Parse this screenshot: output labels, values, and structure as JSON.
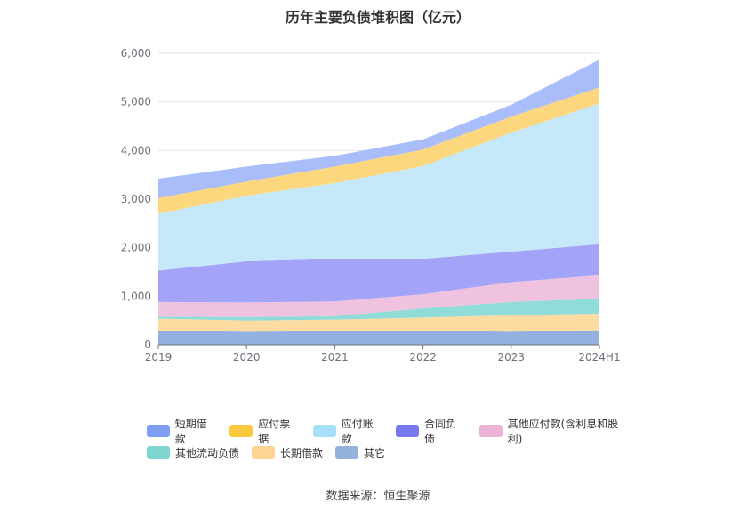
{
  "title": "历年主要负债堆积图（亿元）",
  "source": "数据来源：恒生聚源",
  "chart_data": {
    "type": "area",
    "stacked": true,
    "categories": [
      "2019",
      "2020",
      "2021",
      "2022",
      "2023",
      "2024H1"
    ],
    "ylim": [
      0,
      6000
    ],
    "yticks": [
      "0",
      "1,000",
      "2,000",
      "3,000",
      "4,000",
      "5,000",
      "6,000"
    ],
    "ytick_values": [
      0,
      1000,
      2000,
      3000,
      4000,
      5000,
      6000
    ],
    "grid": true,
    "legend_position": "bottom",
    "series": [
      {
        "name": "其它",
        "color": "#94b0de",
        "values": [
          290,
          270,
          280,
          290,
          270,
          300
        ]
      },
      {
        "name": "长期借款",
        "color": "#fddca2",
        "values": [
          250,
          230,
          240,
          270,
          340,
          340
        ]
      },
      {
        "name": "其他流动负债",
        "color": "#8fdcd8",
        "values": [
          40,
          70,
          70,
          190,
          270,
          310
        ]
      },
      {
        "name": "其他应付款(含利息和股利)",
        "color": "#efc3df",
        "values": [
          300,
          300,
          300,
          290,
          410,
          480
        ]
      },
      {
        "name": "合同负债",
        "color": "#a3a3f8",
        "values": [
          650,
          850,
          880,
          730,
          630,
          640
        ]
      },
      {
        "name": "应付账款",
        "color": "#c5e9fb",
        "values": [
          1170,
          1350,
          1560,
          1910,
          2450,
          2900
        ]
      },
      {
        "name": "应付票据",
        "color": "#fdd77d",
        "values": [
          320,
          290,
          340,
          340,
          330,
          330
        ]
      },
      {
        "name": "短期借款",
        "color": "#a9bdfa",
        "values": [
          400,
          310,
          220,
          210,
          240,
          570
        ]
      }
    ],
    "legend_rows": [
      [
        {
          "name": "短期借款",
          "color": "#7f9ff5"
        },
        {
          "name": "应付票据",
          "color": "#fcc83e"
        },
        {
          "name": "应付账款",
          "color": "#a6e0f8"
        },
        {
          "name": "合同负债",
          "color": "#7777f0"
        },
        {
          "name": "其他应付款(含利息和股利)",
          "color": "#ebb4d6"
        }
      ],
      [
        {
          "name": "其他流动负债",
          "color": "#7fd6d0"
        },
        {
          "name": "长期借款",
          "color": "#fdd491"
        },
        {
          "name": "其它",
          "color": "#94b2dc"
        }
      ]
    ]
  }
}
